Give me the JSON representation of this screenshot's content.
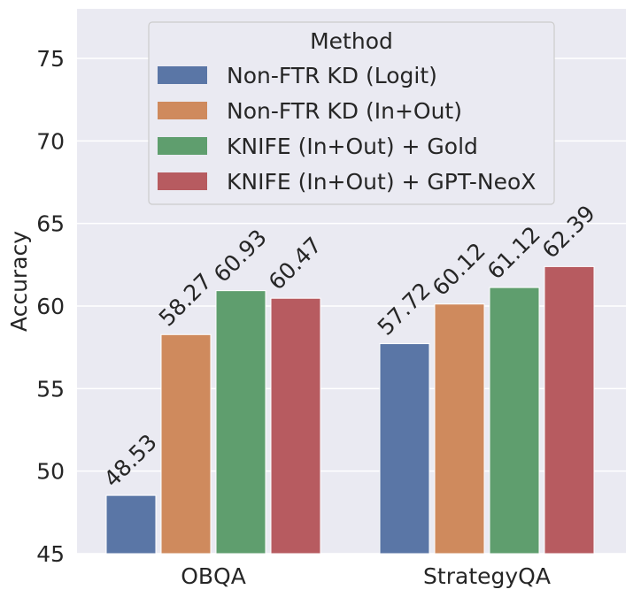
{
  "chart_data": {
    "type": "bar",
    "title": "",
    "xlabel": "",
    "ylabel": "Accuracy",
    "ylim": [
      45,
      78
    ],
    "yticks": [
      45,
      50,
      55,
      60,
      65,
      70,
      75
    ],
    "categories": [
      "OBQA",
      "StrategyQA"
    ],
    "series": [
      {
        "name": "Non-FTR KD (Logit)",
        "values": [
          48.53,
          57.72
        ],
        "color": "#5a76a6",
        "labels": [
          "48.53",
          "57.72"
        ]
      },
      {
        "name": "Non-FTR KD (In+Out)",
        "values": [
          58.27,
          60.12
        ],
        "color": "#cf8a5d",
        "labels": [
          "58.27",
          "60.12"
        ]
      },
      {
        "name": "KNIFE (In+Out) + Gold",
        "values": [
          60.93,
          61.12
        ],
        "color": "#5f9e6e",
        "labels": [
          "60.93",
          "61.12"
        ]
      },
      {
        "name": "KNIFE (In+Out) + GPT-NeoX",
        "values": [
          60.47,
          62.39
        ],
        "color": "#b75b60",
        "labels": [
          "60.47",
          "62.39"
        ]
      }
    ],
    "legend": {
      "title": "Method",
      "placement": "top-center"
    },
    "grid": true,
    "background": "#eaeaf2",
    "grid_color": "#ffffff"
  }
}
